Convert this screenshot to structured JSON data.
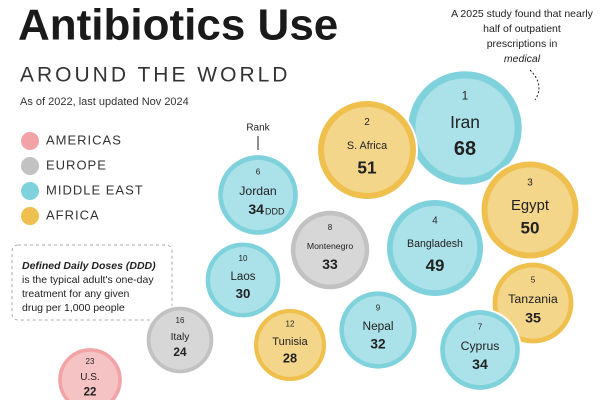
{
  "header": {
    "title": "Antibiotics Use",
    "subtitle": "AROUND THE WORLD",
    "date_note": "As of 2022, last updated Nov 2024"
  },
  "legend": [
    {
      "label": "AMERICAS",
      "color": "#f2a3a6"
    },
    {
      "label": "EUROPE",
      "color": "#c2c2c2"
    },
    {
      "label": "MIDDLE EAST",
      "color": "#7fd2dc"
    },
    {
      "label": "AFRICA",
      "color": "#efc04e"
    }
  ],
  "rank_label": "Rank",
  "definition": {
    "term": "Defined Daily Doses (DDD)",
    "text": [
      "is the typical adult's one-day",
      "treatment for any given",
      "drug per 1,000 people"
    ]
  },
  "callout": [
    "A 2025 study found that nearly",
    "half of outpatient",
    "prescriptions in",
    "medical"
  ],
  "unit": "DDD",
  "bubbles": [
    {
      "rank": 1,
      "country": "Iran",
      "value": 68,
      "color": "#7fd2dc"
    },
    {
      "rank": 2,
      "country": "S. Africa",
      "value": 51,
      "color": "#efc04e"
    },
    {
      "rank": 3,
      "country": "Egypt",
      "value": 50,
      "color": "#efc04e"
    },
    {
      "rank": 4,
      "country": "Bangladesh",
      "value": 49,
      "color": "#7fd2dc"
    },
    {
      "rank": 5,
      "country": "Tanzania",
      "value": 35,
      "color": "#efc04e"
    },
    {
      "rank": 6,
      "country": "Jordan",
      "value": 34,
      "color": "#7fd2dc"
    },
    {
      "rank": 7,
      "country": "Cyprus",
      "value": 34,
      "color": "#7fd2dc"
    },
    {
      "rank": 8,
      "country": "Montenegro",
      "value": 33,
      "color": "#c2c2c2"
    },
    {
      "rank": 9,
      "country": "Nepal",
      "value": 32,
      "color": "#7fd2dc"
    },
    {
      "rank": 10,
      "country": "Laos",
      "value": 30,
      "color": "#7fd2dc"
    },
    {
      "rank": 12,
      "country": "Tunisia",
      "value": 28,
      "color": "#efc04e"
    },
    {
      "rank": 16,
      "country": "Italy",
      "value": 24,
      "color": "#c2c2c2"
    },
    {
      "rank": 23,
      "country": "U.S.",
      "value": 22,
      "color": "#f2a3a6"
    }
  ]
}
